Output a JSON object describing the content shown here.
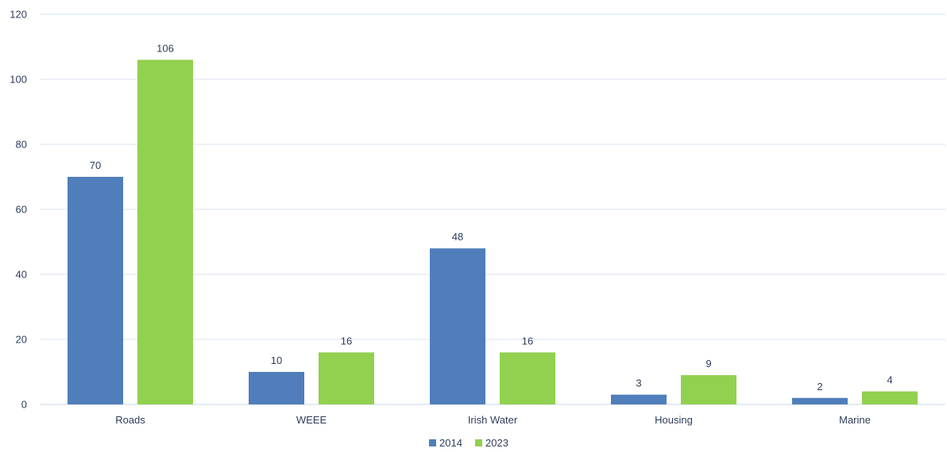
{
  "colors": {
    "series_2014": "#4f7ebb",
    "series_2023": "#92d050",
    "gridline": "#d9e3f0",
    "text": "#2f3d5a"
  },
  "chart_data": {
    "type": "bar",
    "title": "",
    "xlabel": "",
    "ylabel": "",
    "categories": [
      "Roads",
      "WEEE",
      "Irish Water",
      "Housing",
      "Marine"
    ],
    "series": [
      {
        "name": "2014",
        "values": [
          70,
          10,
          48,
          3,
          2
        ],
        "color": "#4f7ebb"
      },
      {
        "name": "2023",
        "values": [
          106,
          16,
          16,
          9,
          4
        ],
        "color": "#92d050"
      }
    ],
    "ylim": [
      0,
      120
    ],
    "yticks": [
      0,
      20,
      40,
      60,
      80,
      100,
      120
    ],
    "grid": true,
    "legend": "bottom-center",
    "data_labels": true
  }
}
